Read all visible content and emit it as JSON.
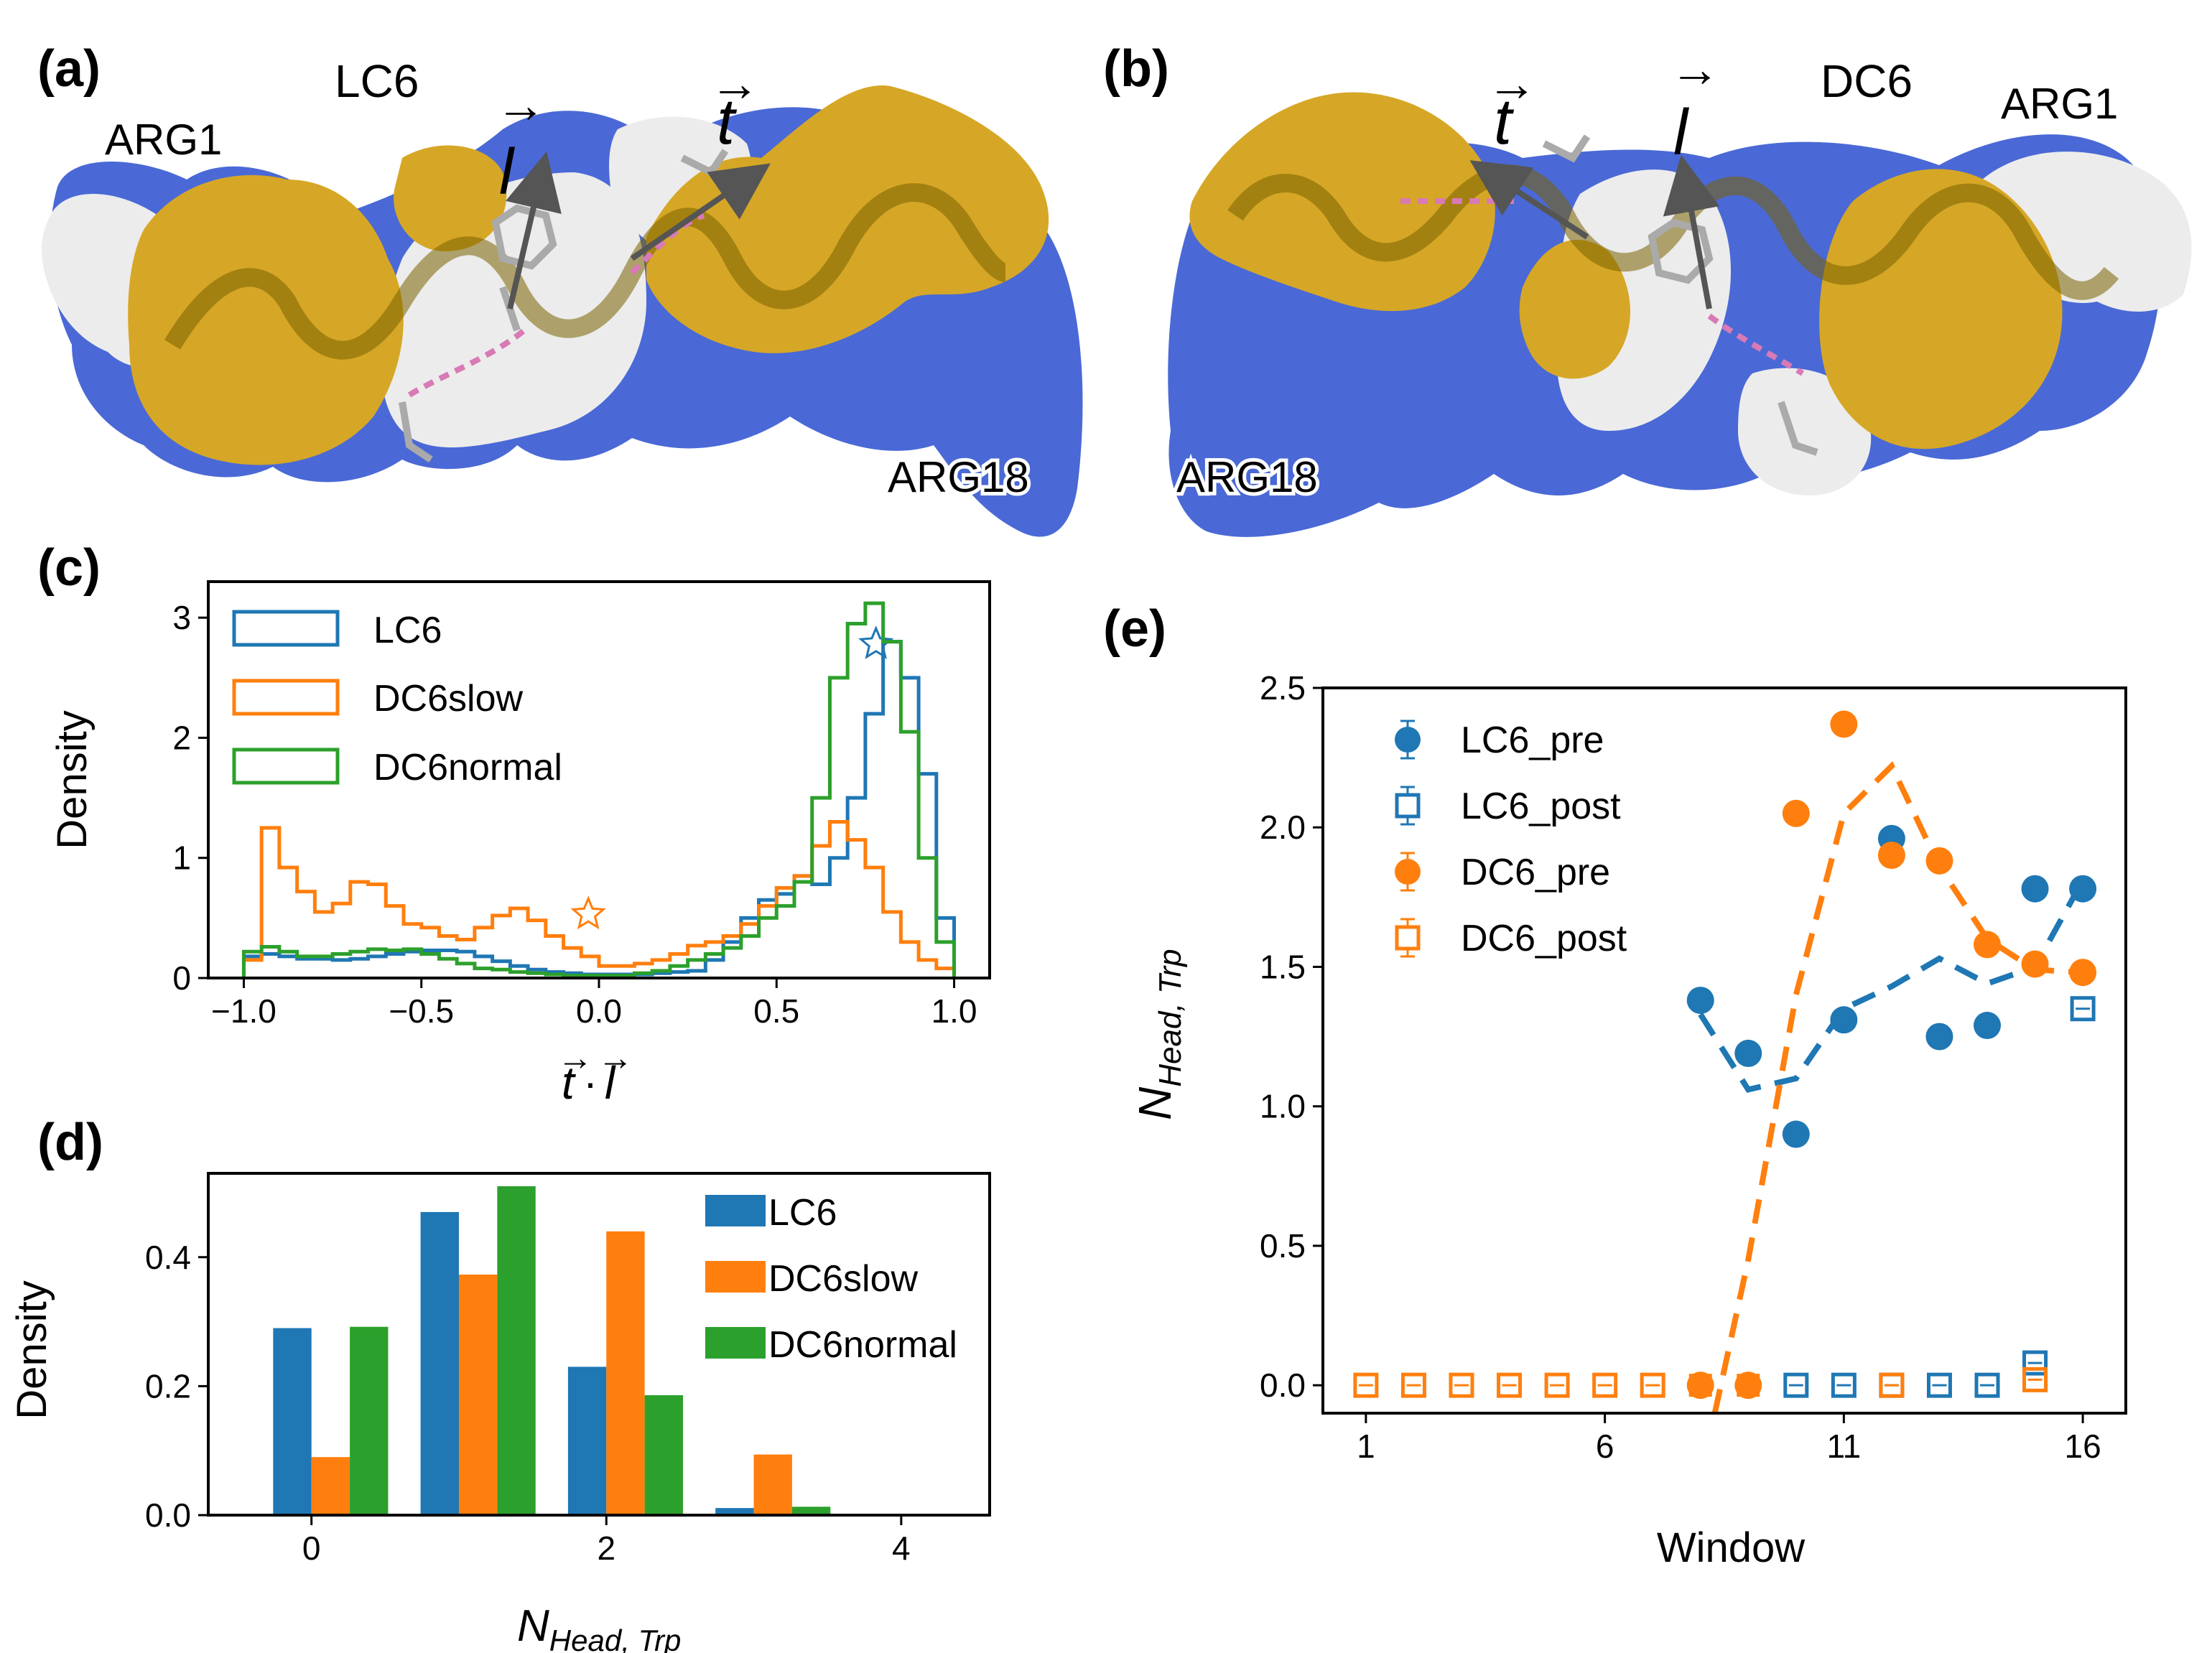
{
  "figure": {
    "panel_labels": {
      "a": "(a)",
      "b": "(b)",
      "c": "(c)",
      "d": "(d)",
      "e": "(e)"
    },
    "colors": {
      "blue": "#1f77b4",
      "orange": "#ff7f0e",
      "green": "#2ca02c",
      "surface_blue": "#4a69d6",
      "surface_yellow": "#d6a726",
      "surface_white": "#e6e6e6"
    }
  },
  "structures": {
    "a": {
      "title": "LC6",
      "vec1": "l",
      "vec2": "t",
      "res_start": "ARG1",
      "res_end": "ARG18"
    },
    "b": {
      "title": "DC6",
      "vec1": "t",
      "vec2": "l",
      "res_start": "ARG1",
      "res_end": "ARG18"
    }
  },
  "chart_data": [
    {
      "id": "c",
      "type": "histogram-step",
      "xlabel": "t · l",
      "ylabel": "Density",
      "xlim": [
        -1.1,
        1.1
      ],
      "ylim": [
        0,
        3.3
      ],
      "xticks": [
        "−1.0",
        "−0.5",
        "0.0",
        "0.5",
        "1.0"
      ],
      "xtick_values": [
        -1.0,
        -0.5,
        0.0,
        0.5,
        1.0
      ],
      "yticks": [
        "0",
        "1",
        "2",
        "3"
      ],
      "ytick_values": [
        0,
        1,
        2,
        3
      ],
      "bin_start": -1.0,
      "bin_width": 0.05,
      "series": [
        {
          "name": "LC6",
          "color": "#1f77b4",
          "values": [
            0.18,
            0.2,
            0.18,
            0.16,
            0.16,
            0.15,
            0.16,
            0.18,
            0.2,
            0.22,
            0.23,
            0.23,
            0.22,
            0.18,
            0.14,
            0.1,
            0.07,
            0.05,
            0.04,
            0.03,
            0.03,
            0.03,
            0.03,
            0.04,
            0.05,
            0.06,
            0.15,
            0.3,
            0.5,
            0.65,
            0.7,
            0.85,
            0.78,
            1.0,
            1.5,
            2.2,
            2.8,
            2.5,
            1.7,
            0.5
          ],
          "star": {
            "x": 0.78,
            "y": 2.78
          }
        },
        {
          "name": "DC6slow",
          "color": "#ff7f0e",
          "values": [
            0.15,
            1.25,
            0.92,
            0.72,
            0.55,
            0.62,
            0.8,
            0.78,
            0.6,
            0.45,
            0.42,
            0.35,
            0.32,
            0.42,
            0.52,
            0.58,
            0.48,
            0.35,
            0.25,
            0.18,
            0.1,
            0.1,
            0.12,
            0.15,
            0.2,
            0.27,
            0.3,
            0.35,
            0.45,
            0.6,
            0.75,
            0.85,
            1.1,
            1.3,
            1.15,
            0.92,
            0.55,
            0.3,
            0.15,
            0.08
          ],
          "star": {
            "x": -0.03,
            "y": 0.53
          }
        },
        {
          "name": "DC6normal",
          "color": "#2ca02c",
          "values": [
            0.22,
            0.26,
            0.22,
            0.18,
            0.18,
            0.2,
            0.22,
            0.24,
            0.23,
            0.24,
            0.2,
            0.16,
            0.12,
            0.08,
            0.07,
            0.05,
            0.04,
            0.03,
            0.02,
            0.02,
            0.02,
            0.02,
            0.04,
            0.06,
            0.1,
            0.15,
            0.2,
            0.25,
            0.35,
            0.5,
            0.6,
            0.8,
            1.5,
            2.5,
            2.95,
            3.12,
            2.8,
            2.05,
            1.0,
            0.3
          ]
        }
      ]
    },
    {
      "id": "d",
      "type": "bar",
      "xlabel": "N_{Head, Trp}",
      "ylabel": "Density",
      "xlim": [
        -0.7,
        4.6
      ],
      "ylim": [
        0,
        0.53
      ],
      "xticks": [
        "0",
        "2",
        "4"
      ],
      "xtick_values": [
        0,
        2,
        4
      ],
      "yticks": [
        "0.0",
        "0.2",
        "0.4"
      ],
      "ytick_values": [
        0,
        0.2,
        0.4
      ],
      "categories": [
        0,
        1,
        2,
        3,
        4
      ],
      "series": [
        {
          "name": "LC6",
          "color": "#1f77b4",
          "values": [
            0.29,
            0.47,
            0.23,
            0.011,
            0
          ]
        },
        {
          "name": "DC6slow",
          "color": "#ff7f0e",
          "values": [
            0.09,
            0.373,
            0.44,
            0.094,
            0
          ]
        },
        {
          "name": "DC6normal",
          "color": "#2ca02c",
          "values": [
            0.292,
            0.51,
            0.186,
            0.013,
            0
          ]
        }
      ]
    },
    {
      "id": "e",
      "type": "scatter+line",
      "xlabel": "Window",
      "ylabel": "N_{Head, Trp}",
      "xlim": [
        0.1,
        16.9
      ],
      "ylim": [
        -0.1,
        2.5
      ],
      "xticks": [
        "1",
        "6",
        "11",
        "16"
      ],
      "xtick_values": [
        1,
        6,
        11,
        16
      ],
      "yticks": [
        "0.0",
        "0.5",
        "1.0",
        "1.5",
        "2.0",
        "2.5"
      ],
      "ytick_values": [
        0,
        0.5,
        1.0,
        1.5,
        2.0,
        2.5
      ],
      "series": [
        {
          "name": "LC6_pre",
          "color": "#1f77b4",
          "marker": "circle",
          "x": [
            8,
            9,
            10,
            11,
            12,
            13,
            14,
            15,
            16
          ],
          "y": [
            1.38,
            1.19,
            0.9,
            1.31,
            1.96,
            1.25,
            1.29,
            1.78,
            1.78
          ]
        },
        {
          "name": "LC6_post",
          "color": "#1f77b4",
          "marker": "square-open",
          "x": [
            10,
            11,
            12,
            13,
            14,
            15,
            16
          ],
          "y": [
            0,
            0,
            0,
            0,
            0,
            0.08,
            1.35
          ]
        },
        {
          "name": "DC6_pre",
          "color": "#ff7f0e",
          "marker": "circle",
          "x": [
            8,
            9,
            10,
            11,
            12,
            13,
            14,
            15,
            16
          ],
          "y": [
            0,
            0,
            2.05,
            2.37,
            1.9,
            1.88,
            1.58,
            1.51,
            1.48
          ]
        },
        {
          "name": "DC6_post",
          "color": "#ff7f0e",
          "marker": "square-open",
          "x": [
            1,
            2,
            3,
            4,
            5,
            6,
            7,
            12,
            15
          ],
          "y": [
            0,
            0,
            0,
            0,
            0,
            0,
            0,
            0,
            0.02
          ]
        }
      ],
      "fits": [
        {
          "name": "LC6 trend",
          "color": "#1f77b4",
          "x": [
            8,
            9,
            10,
            11,
            12,
            13,
            14,
            15,
            16
          ],
          "y": [
            1.33,
            1.06,
            1.1,
            1.35,
            1.43,
            1.53,
            1.44,
            1.5,
            1.81
          ]
        },
        {
          "name": "DC6 trend",
          "color": "#ff7f0e",
          "x": [
            8.3,
            9,
            10,
            11,
            12,
            13,
            14,
            15,
            16
          ],
          "y": [
            -0.1,
            0.45,
            1.4,
            2.05,
            2.22,
            1.86,
            1.6,
            1.49,
            1.48
          ]
        }
      ]
    }
  ]
}
